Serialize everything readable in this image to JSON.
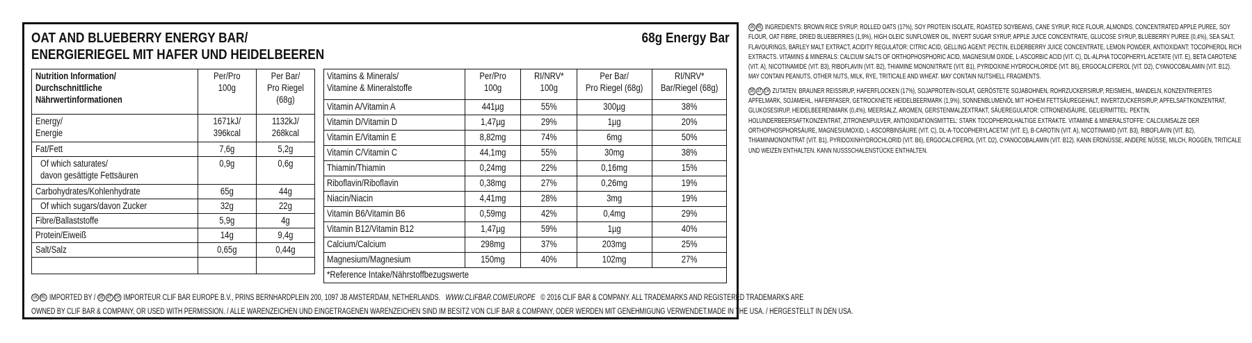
{
  "header": {
    "title_en": "OAT AND BLUEBERRY ENERGY BAR/",
    "title_de": "ENERGIERIEGEL MIT HAFER UND HEIDELBEEREN",
    "net_weight": "68g Energy Bar"
  },
  "nutrition": {
    "headers": [
      "Nutrition Information/",
      "Durchschnittliche",
      "Nährwertinformationen"
    ],
    "col2": [
      "Per/Pro",
      "100g"
    ],
    "col3": [
      "Per Bar/",
      "Pro Riegel",
      "(68g)"
    ],
    "rows": [
      {
        "label": "Energy/",
        "label2": "Energie",
        "per100": "1671kJ/",
        "per100b": "396kcal",
        "perbar": "1132kJ/",
        "perbarb": "268kcal"
      },
      {
        "label": "Fat/Fett",
        "per100": "7,6g",
        "perbar": "5,2g"
      },
      {
        "label": "Of which saturates/",
        "label2": "davon gesättigte Fettsäuren",
        "per100": "0,9g",
        "perbar": "0,6g"
      },
      {
        "label": "Carbohydrates/Kohlenhydrate",
        "per100": "65g",
        "perbar": "44g"
      },
      {
        "label": "Of which sugars/davon Zucker",
        "per100": "32g",
        "perbar": "22g"
      },
      {
        "label": "Fibre/Ballaststoffe",
        "per100": "5,9g",
        "perbar": "4g"
      },
      {
        "label": "Protein/Eiweiß",
        "per100": "14g",
        "perbar": "9,4g"
      },
      {
        "label": "Salt/Salz",
        "per100": "0,65g",
        "perbar": "0,44g"
      }
    ]
  },
  "vitamins": {
    "h1": [
      "Vitamins & Minerals/",
      "Vitamine & Mineralstoffe"
    ],
    "h2": [
      "Per/Pro",
      "100g"
    ],
    "h3": [
      "RI/NRV*",
      "100g"
    ],
    "h4": [
      "Per Bar/",
      "Pro Riegel (68g)"
    ],
    "h5": [
      "RI/NRV*",
      "Bar/Riegel (68g)"
    ],
    "rows": [
      {
        "name": "Vitamin A/Vitamin A",
        "per100": "441µg",
        "ri100": "55%",
        "perbar": "300µg",
        "ribar": "38%"
      },
      {
        "name": "Vitamin D/Vitamin D",
        "per100": "1,47µg",
        "ri100": "29%",
        "perbar": "1µg",
        "ribar": "20%"
      },
      {
        "name": "Vitamin E/Vitamin E",
        "per100": "8,82mg",
        "ri100": "74%",
        "perbar": "6mg",
        "ribar": "50%"
      },
      {
        "name": "Vitamin C/Vitamin C",
        "per100": "44,1mg",
        "ri100": "55%",
        "perbar": "30mg",
        "ribar": "38%"
      },
      {
        "name": "Thiamin/Thiamin",
        "per100": "0,24mg",
        "ri100": "22%",
        "perbar": "0,16mg",
        "ribar": "15%"
      },
      {
        "name": "Riboflavin/Riboflavin",
        "per100": "0,38mg",
        "ri100": "27%",
        "perbar": "0,26mg",
        "ribar": "19%"
      },
      {
        "name": "Niacin/Niacin",
        "per100": "4,41mg",
        "ri100": "28%",
        "perbar": "3mg",
        "ribar": "19%"
      },
      {
        "name": "Vitamin B6/Vitamin B6",
        "per100": "0,59mg",
        "ri100": "42%",
        "perbar": "0,4mg",
        "ribar": "29%"
      },
      {
        "name": "Vitamin B12/Vitamin B12",
        "per100": "1,47µg",
        "ri100": "59%",
        "perbar": "1µg",
        "ribar": "40%"
      },
      {
        "name": "Calcium/Calcium",
        "per100": "298mg",
        "ri100": "37%",
        "perbar": "203mg",
        "ribar": "25%"
      },
      {
        "name": "Magnesium/Magnesium",
        "per100": "150mg",
        "ri100": "40%",
        "perbar": "102mg",
        "ribar": "27%"
      }
    ],
    "footnote": "*Reference Intake/Nährstoffbezugswerte"
  },
  "legal": {
    "seals_a": [
      "UK",
      "IRL"
    ],
    "seals_b": [
      "DE",
      "AT",
      "CH"
    ],
    "imported_by": "IMPORTED BY /",
    "importer": "IMPORTEUR CLIF BAR EUROPE B.V., PRINS BERNHARDPLEIN 200, 1097 JB AMSTERDAM, NETHERLANDS.",
    "url": "WWW.CLIFBAR.COM/EUROPE",
    "copyright": "© 2016 CLIF BAR & COMPANY.  ALL TRADEMARKS AND REGISTERED TRADEMARKS ARE",
    "line2": "OWNED BY CLIF BAR & COMPANY, OR USED WITH PERMISSION. / ALLE WARENZEICHEN UND EINGETRAGENEN WARENZEICHEN SIND IM BESITZ VON CLIF BAR & COMPANY, ODER WERDEN MIT GENEHMIGUNG VERWENDET.",
    "made_in": "MADE IN THE USA. / HERGESTELLT IN DEN USA."
  },
  "ingredients": {
    "en_seals": [
      "UK",
      "IRL"
    ],
    "en": "INGREDIENTS: BROWN RICE SYRUP, ROLLED OATS (17%), SOY PROTEIN ISOLATE, ROASTED SOYBEANS, CANE SYRUP, RICE FLOUR, ALMONDS, CONCENTRATED APPLE PUREE, SOY FLOUR, OAT FIBRE, DRIED BLUEBERRIES (1,9%), HIGH OLEIC SUNFLOWER OIL, INVERT SUGAR SYRUP, APPLE JUICE CONCENTRATE, GLUCOSE SYRUP, BLUEBERRY PUREE (0,4%), SEA SALT, FLAVOURINGS, BARLEY MALT EXTRACT, ACIDITY REGULATOR: CITRIC ACID, GELLING AGENT: PECTIN, ELDERBERRY JUICE CONCENTRATE, LEMON POWDER, ANTIOXIDANT: TOCOPHEROL RICH EXTRACTS. VITAMINS & MINERALS: CALCIUM SALTS OF ORTHOPHOSPHORIC ACID, MAGNESIUM OXIDE, L-ASCORBIC ACID (VIT. C), DL-ALPHA TOCOPHERYL ACETATE (VIT. E), BETA CAROTENE (VIT. A), NICOTINAMIDE (VIT. B3), RIBOFLAVIN (VIT. B2), THIAMINE MONONITRATE (VIT. B1), PYRIDOXINE HYDROCHLORIDE (VIT. B6), ERGOCALCIFEROL (VIT. D2), CYANOCOBALAMIN (VIT. B12). MAY CONTAIN PEANUTS, OTHER NUTS, MILK, RYE, TRITICALE AND WHEAT. MAY CONTAIN NUTSHELL FRAGMENTS.",
    "de_seals": [
      "DE",
      "AT",
      "CH"
    ],
    "de": "ZUTATEN: BRAUNER REISSIRUP, HAFERFLOCKEN (17%), SOJAPROTEIN-ISOLAT, GERÖSTETE SOJABOHNEN, ROHRZUCKERSIRUP, REISMEHL, MANDELN, KONZENTRIERTES APFELMARK, SOJAMEHL, HAFERFASER, GETROCKNETE HEIDELBEERMARK (1,9%), SONNENBLUMENÖL MIT HOHEM FETTSÄUREGEHALT, INVERTZUCKERSIRUP, APFELSAFTKONZENTRAT, GLUKOSESIRUP, HEIDELBEERENMARK (0,4%), MEERSALZ, AROMEN, GERSTENMALZEXTRAKT, SÄUEREGULATOR: CITRONENSÄURE, GELIERMITTEL: PEKTIN, HOLUNDERBEERSAFTKONZENTRAT, ZITRONENPULVER, ANTIOXIDATIONSMITTEL: STARK TOCOPHEROLHALTIGE EXTRAKTE. VITAMINE & MINERALSTOFFE: CALCIUMSALZE DER ORTHOPHOSPHORSÄURE, MAGNESIUMOXID, L-ASCORBINSÄURE (VIT. C), DL-α-TOCOPHERYLACETAT (VIT. E), β-CAROTIN (VIT. A), NICOTINAMID (VIT. B3), RIBOFLAVIN (VIT. B2), THIAMINMONONITRAT (VIT. B1), PYRIDOXINHYDROCHLORID (VIT. B6), ERGOCALCIFEROL (VIT. D2), CYANOCOBALAMIN (VIT. B12). KANN ERDNÜSSE, ANDERE NÜSSE, MILCH, ROGGEN, TRITICALE UND WEIZEN ENTHALTEN. KANN NUSSSCHALENSTÜCKE ENTHALTEN."
  }
}
